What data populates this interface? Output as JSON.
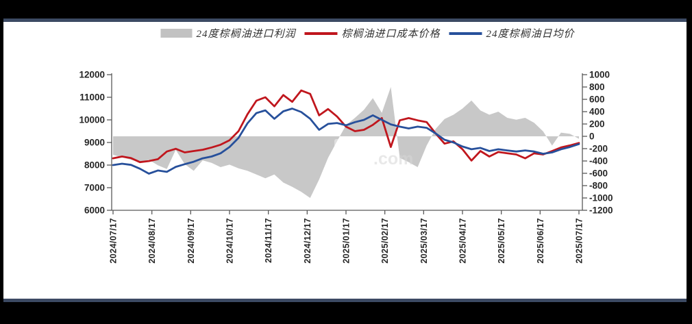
{
  "colors": {
    "frame": "#000000",
    "divider": "#3c4a63",
    "panel": "#ffffff",
    "axis_line": "#595959",
    "axis_text": "#262626",
    "red_line": "#c0161d",
    "blue_line": "#27509b",
    "gray_area": "#c8c8c8"
  },
  "legend": {
    "items": [
      {
        "label": "24度棕榈油进口利润",
        "swatch": "area",
        "color": "#c2c2c2"
      },
      {
        "label": "棕榈油进口成本价格",
        "swatch": "line",
        "color": "#c0161d"
      },
      {
        "label": "24度棕榈油日均价",
        "swatch": "line",
        "color": "#27509b"
      }
    ]
  },
  "chart_data": {
    "type": "line",
    "title": "",
    "x_start": "2024/07/17",
    "x_end": "2025/07/17",
    "x_sampling": "weekly",
    "grid": "off",
    "legend_position": "top-center",
    "watermark": ".com",
    "x_tick_labels": [
      "2024/07/17",
      "2024/08/17",
      "2024/09/17",
      "2024/10/17",
      "2024/11/17",
      "2024/12/17",
      "2025/01/17",
      "2025/02/17",
      "2025/03/17",
      "2025/04/17",
      "2025/05/17",
      "2025/06/17",
      "2025/07/17"
    ],
    "left_axis": {
      "range": [
        6000,
        12000
      ],
      "tick_labels": [
        "12000",
        "11000",
        "10000",
        "9000",
        "8000",
        "7000",
        "6000"
      ]
    },
    "right_axis": {
      "range": [
        -1200,
        1000
      ],
      "tick_labels": [
        "1000",
        "800",
        "600",
        "400",
        "200",
        "0",
        "-200",
        "-400",
        "-600",
        "-800",
        "-1000",
        "-1200"
      ]
    },
    "series": [
      {
        "name": "24度棕榈油进口利润",
        "type": "area",
        "axis": "right",
        "color": "#c8c8c8",
        "values": [
          -300,
          -340,
          -380,
          -420,
          -380,
          -470,
          -530,
          -220,
          -450,
          -560,
          -390,
          -430,
          -500,
          -460,
          -520,
          -560,
          -620,
          -680,
          -620,
          -750,
          -820,
          -900,
          -1000,
          -700,
          -350,
          -80,
          180,
          300,
          430,
          620,
          380,
          800,
          -350,
          -420,
          -500,
          -150,
          120,
          280,
          350,
          450,
          580,
          420,
          350,
          400,
          300,
          270,
          300,
          220,
          80,
          -150,
          60,
          40,
          -40
        ]
      },
      {
        "name": "棕榈油进口成本价格",
        "type": "line",
        "axis": "left",
        "color": "#c0161d",
        "values": [
          8300,
          8380,
          8310,
          8130,
          8180,
          8260,
          8600,
          8720,
          8560,
          8620,
          8680,
          8780,
          8900,
          9100,
          9500,
          10250,
          10850,
          11000,
          10600,
          11100,
          10800,
          11300,
          11150,
          10200,
          10480,
          10150,
          9700,
          9500,
          9560,
          9780,
          10080,
          8800,
          9980,
          10080,
          9980,
          9900,
          9400,
          8950,
          9050,
          8700,
          8200,
          8620,
          8380,
          8580,
          8520,
          8470,
          8300,
          8520,
          8470,
          8620,
          8780,
          8870,
          8980
        ]
      },
      {
        "name": "24度棕榈油日均价",
        "type": "line",
        "axis": "left",
        "color": "#27509b",
        "values": [
          8000,
          8060,
          8010,
          7840,
          7620,
          7760,
          7700,
          7920,
          8040,
          8150,
          8300,
          8380,
          8520,
          8800,
          9200,
          9850,
          10300,
          10420,
          10050,
          10380,
          10500,
          10350,
          10050,
          9560,
          9820,
          9860,
          9760,
          9900,
          10000,
          10200,
          10000,
          9800,
          9700,
          9620,
          9700,
          9650,
          9400,
          9120,
          9000,
          8820,
          8700,
          8760,
          8620,
          8700,
          8650,
          8600,
          8650,
          8600,
          8500,
          8560,
          8700,
          8800,
          8930
        ]
      }
    ]
  }
}
